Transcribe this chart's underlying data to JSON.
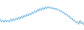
{
  "values": [
    38.5,
    36.0,
    37.2,
    35.5,
    38.0,
    36.2,
    37.5,
    35.8,
    38.8,
    36.5,
    39.2,
    37.0,
    39.8,
    37.8,
    40.5,
    38.5,
    41.5,
    39.5,
    42.5,
    40.8,
    43.5,
    41.8,
    44.5,
    42.8,
    45.5,
    43.8,
    46.8,
    45.0,
    48.0,
    46.2,
    49.0,
    47.2,
    50.0,
    48.2,
    50.8,
    49.0,
    51.0,
    49.2,
    50.5,
    48.8,
    49.8,
    48.0,
    49.2,
    47.2,
    48.2,
    46.2,
    47.0,
    44.8,
    45.5,
    43.0,
    43.8,
    41.2,
    41.8,
    39.0,
    39.5,
    36.8,
    37.8,
    34.8,
    36.2,
    33.5,
    37.5,
    34.2,
    36.0,
    33.0
  ],
  "line_color": "#5baee0",
  "background_color": "#ffffff",
  "ylim_min": 28.0,
  "ylim_max": 58.0,
  "linewidth": 0.7
}
